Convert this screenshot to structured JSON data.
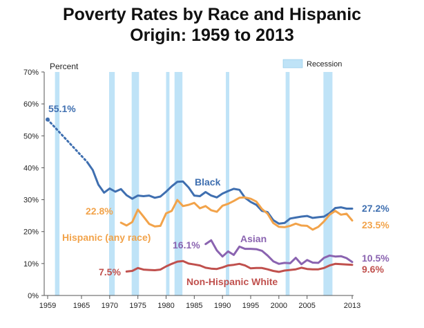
{
  "title_line1": "Poverty Rates by Race and Hispanic",
  "title_line2": "Origin: 1959 to 2013",
  "chart_data": {
    "type": "line",
    "title": "Poverty Rates by Race and Hispanic Origin: 1959 to 2013",
    "ylabel": "Percent",
    "xlabel": "",
    "ylim": [
      0,
      70
    ],
    "xlim": [
      1959,
      2013
    ],
    "y_ticks": [
      "0%",
      "10%",
      "20%",
      "30%",
      "40%",
      "50%",
      "60%",
      "70%"
    ],
    "x_ticks": [
      "1959",
      "1965",
      "1970",
      "1975",
      "1980",
      "1985",
      "1990",
      "1995",
      "2000",
      "2005",
      "2013"
    ],
    "x_tick_values": [
      1959,
      1965,
      1970,
      1975,
      1980,
      1985,
      1990,
      1995,
      2000,
      2005,
      2013
    ],
    "grid": false,
    "legend": {
      "label": "Recession",
      "position": "top-right",
      "color": "#bfe3f7"
    },
    "recessions": [
      [
        1960.3,
        1961.1
      ],
      [
        1969.9,
        1970.9
      ],
      [
        1973.9,
        1975.2
      ],
      [
        1980.0,
        1980.6
      ],
      [
        1981.5,
        1982.9
      ],
      [
        1990.6,
        1991.2
      ],
      [
        2001.2,
        2001.9
      ],
      [
        2007.9,
        2009.5
      ]
    ],
    "series": [
      {
        "name": "Black",
        "color": "#3f6fb0",
        "label_position": "upper-middle",
        "start_label": "55.1%",
        "end_label": "27.2%",
        "dotted_segment": [
          [
            1959,
            55.1
          ],
          [
            1966,
            41.8
          ]
        ],
        "x": [
          1966,
          1967,
          1968,
          1969,
          1970,
          1971,
          1972,
          1973,
          1974,
          1975,
          1976,
          1977,
          1978,
          1979,
          1980,
          1981,
          1982,
          1983,
          1984,
          1985,
          1986,
          1987,
          1988,
          1989,
          1990,
          1991,
          1992,
          1993,
          1994,
          1995,
          1996,
          1997,
          1998,
          1999,
          2000,
          2001,
          2002,
          2003,
          2004,
          2005,
          2006,
          2007,
          2008,
          2009,
          2010,
          2011,
          2012,
          2013
        ],
        "values": [
          41.8,
          39.3,
          34.7,
          32.2,
          33.5,
          32.5,
          33.3,
          31.4,
          30.3,
          31.3,
          31.1,
          31.3,
          30.6,
          31.0,
          32.5,
          34.2,
          35.6,
          35.7,
          33.8,
          31.3,
          31.1,
          32.4,
          31.3,
          30.7,
          31.9,
          32.7,
          33.4,
          33.1,
          30.6,
          29.3,
          28.4,
          26.5,
          26.1,
          23.6,
          22.5,
          22.7,
          24.1,
          24.4,
          24.7,
          24.9,
          24.3,
          24.5,
          24.7,
          25.8,
          27.4,
          27.6,
          27.2,
          27.2
        ]
      },
      {
        "name": "Hispanic (any race)",
        "color": "#f2a34a",
        "start_label": "22.8%",
        "end_label": "23.5%",
        "x": [
          1972,
          1973,
          1974,
          1975,
          1976,
          1977,
          1978,
          1979,
          1980,
          1981,
          1982,
          1983,
          1984,
          1985,
          1986,
          1987,
          1988,
          1989,
          1990,
          1991,
          1992,
          1993,
          1994,
          1995,
          1996,
          1997,
          1998,
          1999,
          2000,
          2001,
          2002,
          2003,
          2004,
          2005,
          2006,
          2007,
          2008,
          2009,
          2010,
          2011,
          2012,
          2013
        ],
        "values": [
          22.8,
          21.9,
          23.0,
          26.9,
          24.7,
          22.4,
          21.6,
          21.8,
          25.7,
          26.5,
          29.9,
          28.0,
          28.4,
          29.0,
          27.3,
          28.0,
          26.7,
          26.2,
          28.1,
          28.7,
          29.6,
          30.6,
          30.7,
          30.3,
          29.4,
          27.1,
          25.6,
          22.7,
          21.5,
          21.4,
          21.8,
          22.5,
          21.9,
          21.8,
          20.6,
          21.5,
          23.2,
          25.3,
          26.5,
          25.3,
          25.6,
          23.5
        ]
      },
      {
        "name": "Asian",
        "color": "#8a63b0",
        "start_label": "16.1%",
        "end_label": "10.5%",
        "x": [
          1987,
          1988,
          1989,
          1990,
          1991,
          1992,
          1993,
          1994,
          1995,
          1996,
          1997,
          1998,
          1999,
          2000,
          2001,
          2002,
          2003,
          2004,
          2005,
          2006,
          2007,
          2008,
          2009,
          2010,
          2011,
          2012,
          2013
        ],
        "values": [
          16.1,
          17.3,
          14.1,
          12.2,
          13.8,
          12.7,
          15.3,
          14.6,
          14.6,
          14.5,
          14.0,
          12.5,
          10.7,
          9.9,
          10.2,
          10.1,
          11.8,
          9.8,
          11.1,
          10.3,
          10.2,
          11.8,
          12.5,
          12.2,
          12.3,
          11.7,
          10.5
        ]
      },
      {
        "name": "Non-Hispanic White",
        "color": "#c0504d",
        "start_label": "7.5%",
        "end_label": "9.6%",
        "x": [
          1973,
          1974,
          1975,
          1976,
          1977,
          1978,
          1979,
          1980,
          1981,
          1982,
          1983,
          1984,
          1985,
          1986,
          1987,
          1988,
          1989,
          1990,
          1991,
          1992,
          1993,
          1994,
          1995,
          1996,
          1997,
          1998,
          1999,
          2000,
          2001,
          2002,
          2003,
          2004,
          2005,
          2006,
          2007,
          2008,
          2009,
          2010,
          2011,
          2012,
          2013
        ],
        "values": [
          7.5,
          7.7,
          8.6,
          8.1,
          8.0,
          7.9,
          8.1,
          9.1,
          9.9,
          10.6,
          10.8,
          10.0,
          9.7,
          9.4,
          8.7,
          8.4,
          8.3,
          8.8,
          9.4,
          9.6,
          9.9,
          9.4,
          8.5,
          8.6,
          8.6,
          8.2,
          7.7,
          7.4,
          7.8,
          8.0,
          8.2,
          8.7,
          8.3,
          8.2,
          8.2,
          8.6,
          9.4,
          9.9,
          9.8,
          9.7,
          9.6
        ]
      }
    ]
  }
}
